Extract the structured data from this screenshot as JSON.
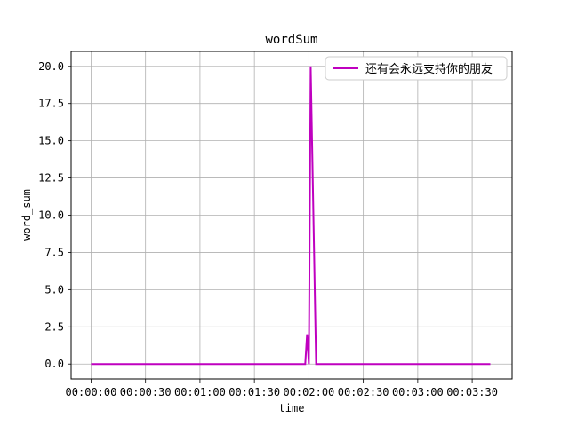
{
  "chart_data": {
    "type": "line",
    "title": "wordSum",
    "xlabel": "time",
    "ylabel": "word_sum",
    "x_tick_labels": [
      "00:00:00",
      "00:00:30",
      "00:01:00",
      "00:01:30",
      "00:02:00",
      "00:02:30",
      "00:03:00",
      "00:03:30"
    ],
    "x_ticks_seconds": [
      0,
      30,
      60,
      90,
      120,
      150,
      180,
      210
    ],
    "y_tick_labels": [
      "0.0",
      "2.5",
      "5.0",
      "7.5",
      "10.0",
      "12.5",
      "15.0",
      "17.5",
      "20.0"
    ],
    "y_ticks": [
      0,
      2.5,
      5,
      7.5,
      10,
      12.5,
      15,
      17.5,
      20
    ],
    "xlim_seconds": [
      -11,
      232
    ],
    "ylim": [
      -1,
      21
    ],
    "grid": true,
    "legend_position": "upper right",
    "series": [
      {
        "name": "还有会永远支持你的朋友",
        "color": "#bf00bf",
        "x_seconds": [
          0,
          118,
          119,
          120,
          121,
          124,
          125,
          220
        ],
        "y": [
          0,
          0,
          2,
          0,
          20,
          0,
          0,
          0
        ]
      }
    ]
  }
}
